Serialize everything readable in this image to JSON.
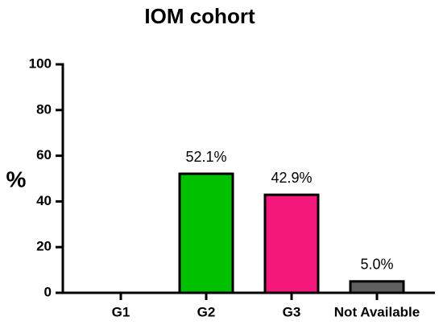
{
  "chart_data": {
    "type": "bar",
    "title": "IOM cohort",
    "y_label": "%",
    "categories": [
      "G1",
      "G2",
      "G3",
      "Not Available"
    ],
    "values": [
      null,
      52.1,
      42.9,
      5.0
    ],
    "value_labels": [
      null,
      "52.1%",
      "42.9%",
      "5.0%"
    ],
    "colors": [
      "#00c000",
      "#00c000",
      "#f5187c",
      "#606060"
    ],
    "ylim": [
      0,
      100
    ],
    "yticks": [
      0,
      20,
      40,
      60,
      80,
      100
    ],
    "grid": false
  }
}
